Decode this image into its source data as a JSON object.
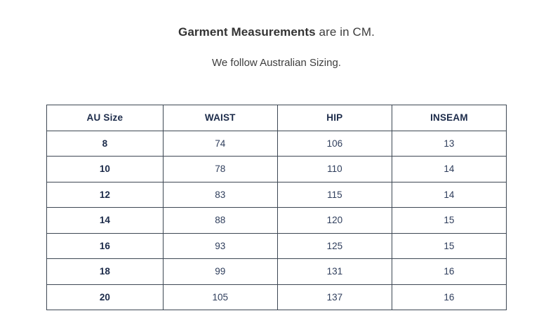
{
  "header": {
    "title_bold": "Garment Measurements",
    "title_rest": " are in CM.",
    "subtitle": "We follow Australian Sizing."
  },
  "table": {
    "columns": [
      "AU Size",
      "WAIST",
      "HIP",
      "INSEAM"
    ],
    "rows": [
      [
        "8",
        "74",
        "106",
        "13"
      ],
      [
        "10",
        "78",
        "110",
        "14"
      ],
      [
        "12",
        "83",
        "115",
        "14"
      ],
      [
        "14",
        "88",
        "120",
        "15"
      ],
      [
        "16",
        "93",
        "125",
        "15"
      ],
      [
        "18",
        "99",
        "131",
        "16"
      ],
      [
        "20",
        "105",
        "137",
        "16"
      ]
    ]
  },
  "chart_data": {
    "type": "table",
    "title": "Garment Measurements are in CM.",
    "subtitle": "We follow Australian Sizing.",
    "columns": [
      "AU Size",
      "WAIST",
      "HIP",
      "INSEAM"
    ],
    "rows": [
      {
        "au_size": 8,
        "waist": 74,
        "hip": 106,
        "inseam": 13
      },
      {
        "au_size": 10,
        "waist": 78,
        "hip": 110,
        "inseam": 14
      },
      {
        "au_size": 12,
        "waist": 83,
        "hip": 115,
        "inseam": 14
      },
      {
        "au_size": 14,
        "waist": 88,
        "hip": 120,
        "inseam": 15
      },
      {
        "au_size": 16,
        "waist": 93,
        "hip": 125,
        "inseam": 15
      },
      {
        "au_size": 18,
        "waist": 99,
        "hip": 131,
        "inseam": 16
      },
      {
        "au_size": 20,
        "waist": 105,
        "hip": 137,
        "inseam": 16
      }
    ],
    "units": "CM"
  },
  "colors": {
    "border": "#3d4753",
    "header_text": "#1c2b4a",
    "value_text": "#2f3e5c",
    "title_text": "#3d3d3d",
    "background": "#ffffff"
  }
}
